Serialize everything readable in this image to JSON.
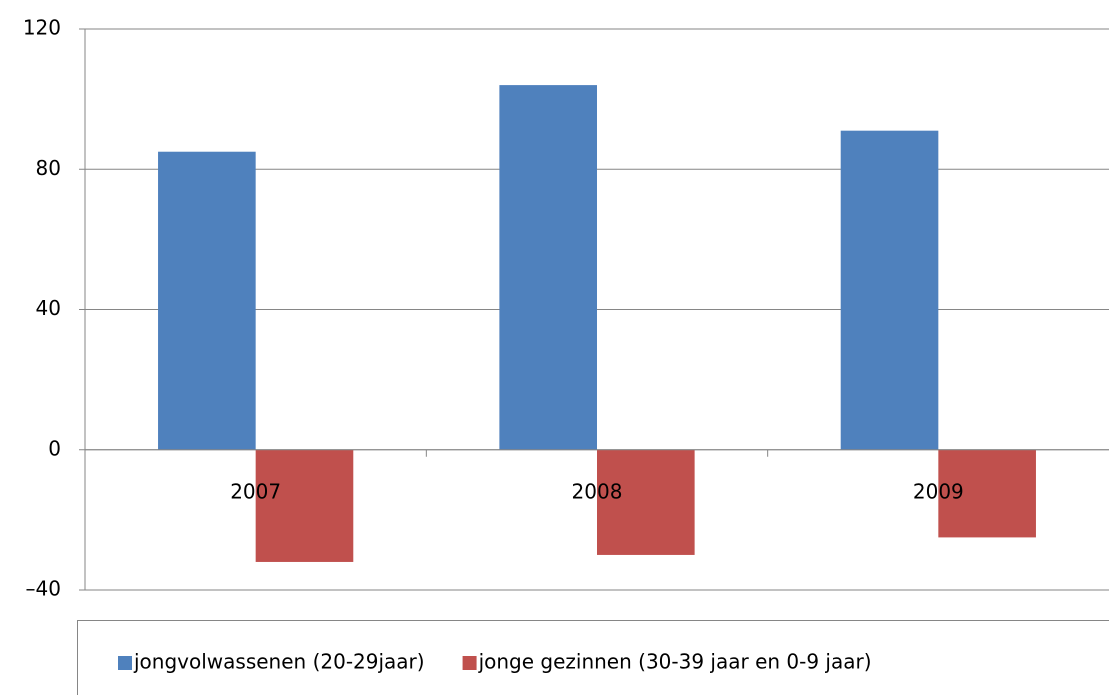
{
  "chart_data": {
    "type": "bar",
    "categories": [
      "2007",
      "2008",
      "2009"
    ],
    "series": [
      {
        "name": "jongvolwassenen (20-29jaar)",
        "color": "#4f81bd",
        "values": [
          85,
          104,
          91
        ]
      },
      {
        "name": "jonge gezinnen (30-39 jaar en 0-9 jaar)",
        "color": "#c0504d",
        "values": [
          -32,
          -30,
          -25
        ]
      }
    ],
    "ylim": [
      -40,
      120
    ],
    "yticks": [
      {
        "value": -40,
        "label": "–40"
      },
      0,
      40,
      80,
      120
    ],
    "grid": true,
    "legend": "bottom"
  }
}
